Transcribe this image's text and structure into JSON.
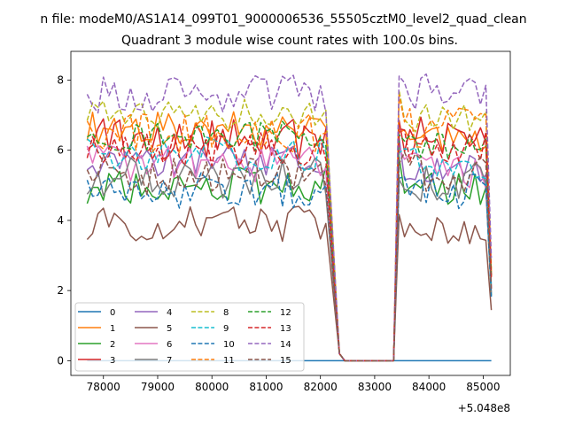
{
  "figure": {
    "suptitle": "n file: modeM0/AS1A14_099T01_9000006536_55505cztM0_level2_quad_clean",
    "title": "Quadrant 3 module wise count rates with 100.0s bins."
  },
  "chart_data": {
    "type": "line",
    "title": "Quadrant 3 module wise count rates with 100.0s bins.",
    "xlabel": "",
    "ylabel": "",
    "x_offset_label": "+5.048e8",
    "xlim": [
      77400,
      85500
    ],
    "ylim": [
      -0.42,
      8.82
    ],
    "xticks": [
      78000,
      79000,
      80000,
      81000,
      82000,
      83000,
      84000,
      85000
    ],
    "xtick_labels": [
      "78000",
      "79000",
      "80000",
      "81000",
      "82000",
      "83000",
      "84000",
      "85000"
    ],
    "yticks": [
      0,
      2,
      4,
      6,
      8
    ],
    "ytick_labels": [
      "0",
      "2",
      "4",
      "6",
      "8"
    ],
    "grid": false,
    "legend_position": "lower-left",
    "legend_columns": 4,
    "segments": [
      {
        "x0": 77700,
        "x1": 82150
      },
      {
        "x0": 83450,
        "x1": 85150
      }
    ],
    "gap_points": [
      {
        "x": 82150,
        "fall": true
      },
      {
        "x": 82350,
        "value": 0.2
      },
      {
        "x": 82450,
        "value": 0.0
      },
      {
        "x": 83350,
        "value": 0.0
      }
    ],
    "series": [
      {
        "name": "0",
        "color": "#1f77b4",
        "dash": "solid",
        "level_a": 0.0,
        "level_b": 0.0
      },
      {
        "name": "1",
        "color": "#ff7f0e",
        "dash": "solid",
        "level_a": 6.6,
        "level_b": 6.3
      },
      {
        "name": "2",
        "color": "#2ca02c",
        "dash": "solid",
        "level_a": 5.0,
        "level_b": 4.9
      },
      {
        "name": "3",
        "color": "#d62728",
        "dash": "solid",
        "level_a": 6.3,
        "level_b": 6.4
      },
      {
        "name": "4",
        "color": "#9467bd",
        "dash": "solid",
        "level_a": 5.7,
        "level_b": 5.5
      },
      {
        "name": "5",
        "color": "#8c564b",
        "dash": "solid",
        "level_a": 3.9,
        "level_b": 3.8
      },
      {
        "name": "6",
        "color": "#e377c2",
        "dash": "solid",
        "level_a": 5.6,
        "level_b": 5.4
      },
      {
        "name": "7",
        "color": "#7f7f7f",
        "dash": "solid",
        "level_a": 5.2,
        "level_b": 5.1
      },
      {
        "name": "8",
        "color": "#bcbd22",
        "dash": "dashed",
        "level_a": 7.0,
        "level_b": 6.9
      },
      {
        "name": "9",
        "color": "#17becf",
        "dash": "dashed",
        "level_a": 5.9,
        "level_b": 5.6
      },
      {
        "name": "10",
        "color": "#1f77b4",
        "dash": "dashed",
        "level_a": 4.9,
        "level_b": 4.8
      },
      {
        "name": "11",
        "color": "#ff7f0e",
        "dash": "dashed",
        "level_a": 6.5,
        "level_b": 6.6
      },
      {
        "name": "12",
        "color": "#2ca02c",
        "dash": "dashed",
        "level_a": 6.4,
        "level_b": 6.2
      },
      {
        "name": "13",
        "color": "#d62728",
        "dash": "dashed",
        "level_a": 6.0,
        "level_b": 6.1
      },
      {
        "name": "14",
        "color": "#9467bd",
        "dash": "dashed",
        "level_a": 7.6,
        "level_b": 7.7
      },
      {
        "name": "15",
        "color": "#8c564b",
        "dash": "dashed",
        "level_a": 5.3,
        "level_b": 5.4
      }
    ]
  }
}
